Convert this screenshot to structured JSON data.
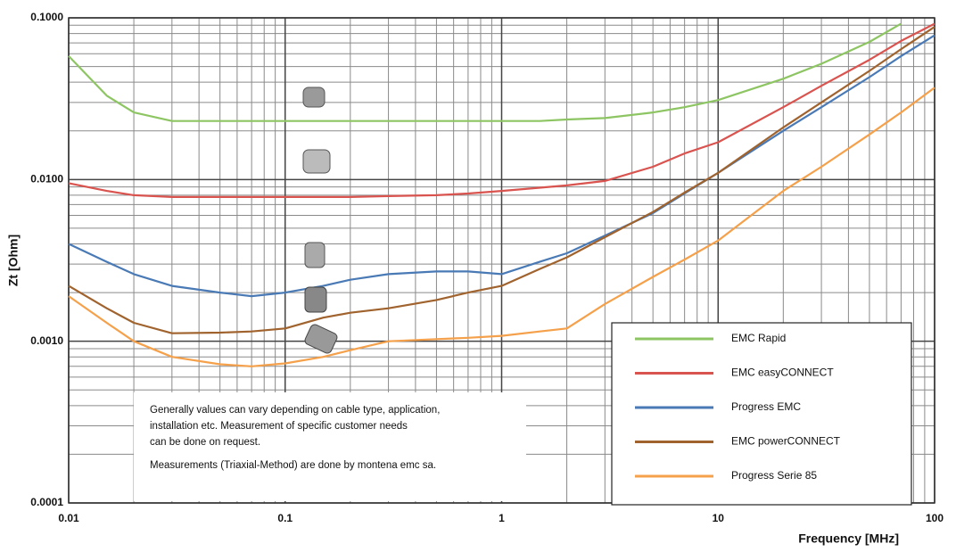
{
  "chart_data": {
    "type": "line",
    "y_label": "Zt [Ohm]",
    "x_label": "Frequency [MHz]",
    "log_x": true,
    "log_y": true,
    "grid": true,
    "legend": "lower right",
    "xlim": [
      0.01,
      100
    ],
    "xticks": [
      0.01,
      0.1,
      1,
      10,
      100
    ],
    "ylim": [
      0.0001,
      0.1
    ],
    "yticks": [
      {
        "value": 0.0001,
        "label": "0.0001"
      },
      {
        "value": 0.001,
        "label": "0.0010"
      },
      {
        "value": 0.01,
        "label": "0.0100"
      },
      {
        "value": 0.1,
        "label": "0.1000"
      }
    ],
    "x": [
      0.01,
      0.015,
      0.02,
      0.03,
      0.05,
      0.07,
      0.1,
      0.15,
      0.2,
      0.3,
      0.5,
      0.7,
      1,
      1.5,
      2,
      3,
      5,
      7,
      10,
      20,
      30,
      50,
      70,
      100
    ],
    "series": [
      {
        "name": "EMC Rapid",
        "color": "#8dc563",
        "values": [
          0.058,
          0.033,
          0.026,
          0.023,
          0.023,
          0.023,
          0.023,
          0.023,
          0.023,
          0.023,
          0.023,
          0.023,
          0.023,
          0.023,
          0.0235,
          0.024,
          0.026,
          0.028,
          0.031,
          0.042,
          0.052,
          0.071,
          0.092,
          null
        ]
      },
      {
        "name": "EMC easyCONNECT",
        "color": "#d9534f",
        "values": [
          0.0095,
          0.0085,
          0.008,
          0.0078,
          0.0078,
          0.0078,
          0.0078,
          0.0078,
          0.0078,
          0.0079,
          0.008,
          0.0082,
          0.0085,
          0.0089,
          0.0092,
          0.0098,
          0.012,
          0.0145,
          0.017,
          0.028,
          0.038,
          0.055,
          0.072,
          0.092
        ]
      },
      {
        "name": "Progress EMC",
        "color": "#4a7ab5",
        "values": [
          0.004,
          0.0031,
          0.0026,
          0.0022,
          0.002,
          0.0019,
          0.002,
          0.0022,
          0.0024,
          0.0026,
          0.0027,
          0.0027,
          0.0026,
          0.0031,
          0.0035,
          0.0045,
          0.0062,
          0.0082,
          0.011,
          0.02,
          0.028,
          0.043,
          0.058,
          0.078
        ]
      },
      {
        "name": "EMC powerCONNECT",
        "color": "#a0632e",
        "values": [
          0.0022,
          0.0016,
          0.0013,
          0.00112,
          0.00113,
          0.00115,
          0.0012,
          0.0014,
          0.0015,
          0.0016,
          0.0018,
          0.002,
          0.0022,
          0.0028,
          0.0033,
          0.0044,
          0.0063,
          0.0083,
          0.011,
          0.021,
          0.03,
          0.047,
          0.064,
          0.088
        ]
      },
      {
        "name": "Progress Serie 85",
        "color": "#f5a04a",
        "values": [
          0.0019,
          0.0013,
          0.001,
          0.0008,
          0.00072,
          0.0007,
          0.00073,
          0.0008,
          0.00088,
          0.001,
          0.00103,
          0.00105,
          0.00108,
          0.00115,
          0.0012,
          0.0017,
          0.0025,
          0.0032,
          0.0042,
          0.0085,
          0.012,
          0.019,
          0.026,
          0.037
        ]
      }
    ],
    "annotation": [
      "Generally values can vary depending on cable type, application,",
      "installation etc.  Measurement of specific customer needs",
      "can be done on request.",
      "Measurements (Triaxial-Method) are done by montena emc sa."
    ]
  }
}
